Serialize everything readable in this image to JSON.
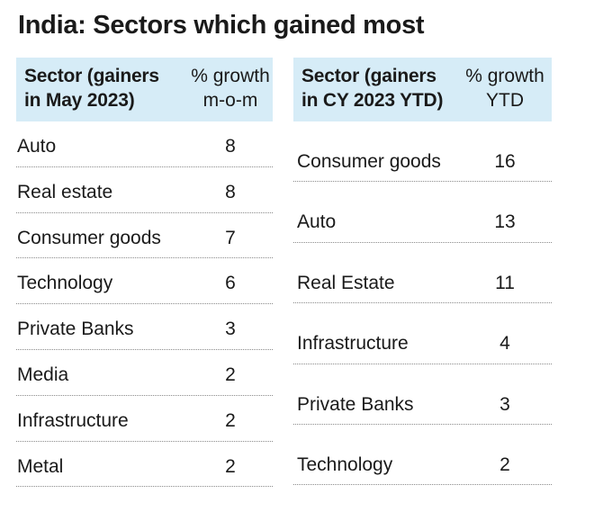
{
  "title": "India: Sectors which gained most",
  "chart_data": [
    {
      "type": "table",
      "columns": [
        "Sector (gainers in May 2023)",
        "% growth m-o-m"
      ],
      "header": {
        "sector_line1": "Sector (gainers",
        "sector_line2": "in May 2023)",
        "growth_line1": "% growth",
        "growth_line2": "m-o-m"
      },
      "rows": [
        {
          "sector": "Auto",
          "value": 8
        },
        {
          "sector": "Real estate",
          "value": 8
        },
        {
          "sector": "Consumer goods",
          "value": 7
        },
        {
          "sector": "Technology",
          "value": 6
        },
        {
          "sector": "Private Banks",
          "value": 3
        },
        {
          "sector": "Media",
          "value": 2
        },
        {
          "sector": "Infrastructure",
          "value": 2
        },
        {
          "sector": "Metal",
          "value": 2
        }
      ]
    },
    {
      "type": "table",
      "columns": [
        "Sector (gainers in CY 2023 YTD)",
        "% growth YTD"
      ],
      "header": {
        "sector_line1": "Sector (gainers",
        "sector_line2": "in CY 2023 YTD)",
        "growth_line1": "% growth",
        "growth_line2": "YTD"
      },
      "rows": [
        {
          "sector": "Consumer goods",
          "value": 16
        },
        {
          "sector": "Auto",
          "value": 13
        },
        {
          "sector": "Real Estate",
          "value": 11
        },
        {
          "sector": "Infrastructure",
          "value": 4
        },
        {
          "sector": "Private Banks",
          "value": 3
        },
        {
          "sector": "Technology",
          "value": 2
        }
      ]
    }
  ],
  "colors": {
    "header_background": "#d6ecf7",
    "text": "#1a1a1a",
    "divider": "#8a8a8a"
  }
}
